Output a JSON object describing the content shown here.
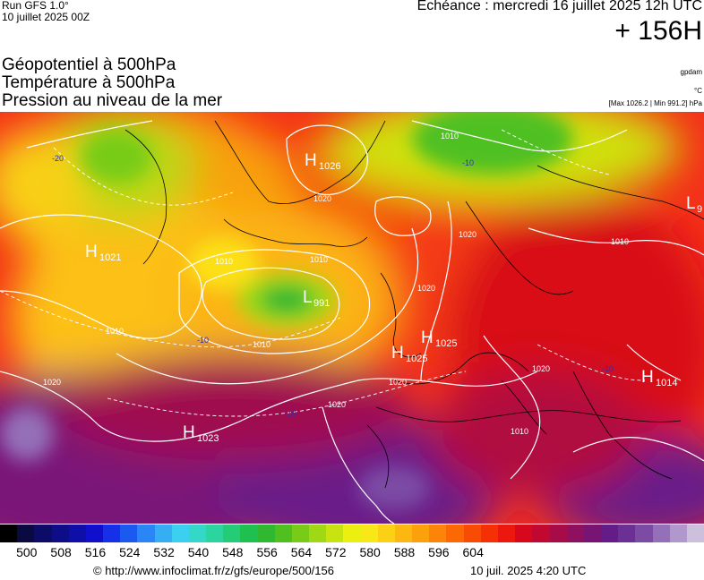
{
  "header": {
    "run": "Run GFS 1.0°",
    "run_date": "10 juillet 2025 00Z",
    "echeance": "Echéance : mercredi 16 juillet 2025 12h UTC",
    "horizon": "+ 156H"
  },
  "titles": {
    "line1": "Géopotentiel à 500hPa",
    "line2": "Température à 500hPa",
    "line3": "Pression au niveau de la mer"
  },
  "units": {
    "geopotential": "gpdam",
    "temperature": "°C",
    "pressure_range": "[Max 1026.2 | Min 991.2] hPa"
  },
  "map_labels": {
    "highs": [
      {
        "letter": "H",
        "value": "1026"
      },
      {
        "letter": "H",
        "value": "1021"
      },
      {
        "letter": "H",
        "value": "1023"
      },
      {
        "letter": "H",
        "value": "1025"
      },
      {
        "letter": "H",
        "value": "1025"
      },
      {
        "letter": "H",
        "value": "1014"
      }
    ],
    "lows": [
      {
        "letter": "L",
        "value": "991"
      },
      {
        "letter": "L",
        "value": "9"
      }
    ],
    "isobars": [
      "1010",
      "1010",
      "1010",
      "1010",
      "1010",
      "1010",
      "1010",
      "1020",
      "1020",
      "1020",
      "1020",
      "1020",
      "1020",
      "1020"
    ],
    "isotherms": [
      "-20",
      "-10",
      "-10",
      "-10",
      "-10"
    ]
  },
  "colorbar": {
    "colors": [
      "#000000",
      "#0a0a40",
      "#0c0c68",
      "#0d0d88",
      "#0e0ea8",
      "#1010cc",
      "#1530e8",
      "#1a5af0",
      "#2a86f4",
      "#36aef4",
      "#3cd0f0",
      "#34d8c8",
      "#2cd4a0",
      "#24cc78",
      "#20c050",
      "#30b830",
      "#50c020",
      "#78cc18",
      "#a0d814",
      "#c8e410",
      "#ecf010",
      "#f8e818",
      "#fcd014",
      "#fcb810",
      "#fca00c",
      "#fc8408",
      "#fc6804",
      "#f84c04",
      "#f43004",
      "#ec1810",
      "#d8081c",
      "#c00830",
      "#a80c48",
      "#901060",
      "#781474",
      "#641c88",
      "#6c3094",
      "#7c4ca4",
      "#9470b8",
      "#b098cc",
      "#ccc0dc"
    ],
    "ticks": [
      "500",
      "508",
      "516",
      "524",
      "532",
      "540",
      "548",
      "556",
      "564",
      "572",
      "580",
      "588",
      "596",
      "604"
    ]
  },
  "footer": {
    "url": "© http://www.infoclimat.fr/z/gfs/europe/500/156",
    "date": "10 juil. 2025  4:20 UTC"
  }
}
